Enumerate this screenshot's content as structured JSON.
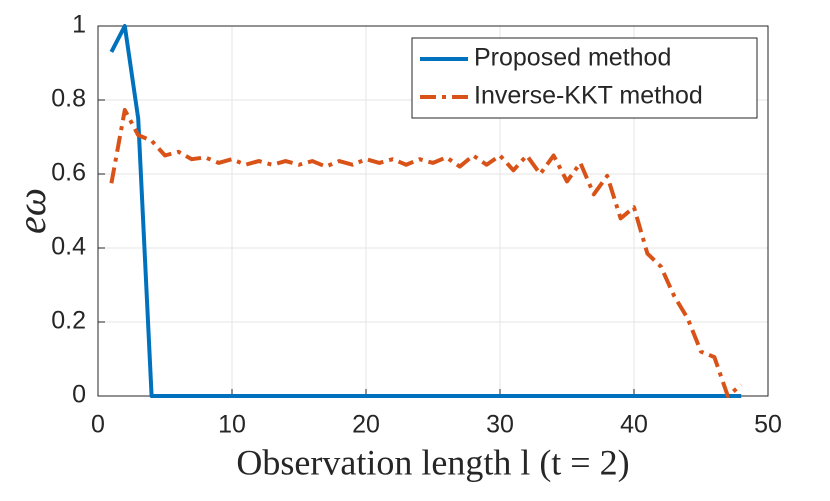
{
  "chart_data": {
    "type": "line",
    "xlabel": "Observation length l (t = 2)",
    "ylabel": "eω",
    "x": [
      1,
      2,
      3,
      4,
      5,
      6,
      7,
      8,
      9,
      10,
      11,
      12,
      13,
      14,
      15,
      16,
      17,
      18,
      19,
      20,
      21,
      22,
      23,
      24,
      25,
      26,
      27,
      28,
      29,
      30,
      31,
      32,
      33,
      34,
      35,
      36,
      37,
      38,
      39,
      40,
      41,
      42,
      43,
      44,
      45,
      46,
      47,
      48
    ],
    "series": [
      {
        "name": "Proposed method",
        "color": "#0072bd",
        "dash": "solid",
        "values": [
          0.93,
          1,
          0.75,
          0,
          0,
          0,
          0,
          0,
          0,
          0,
          0,
          0,
          0,
          0,
          0,
          0,
          0,
          0,
          0,
          0,
          0,
          0,
          0,
          0,
          0,
          0,
          0,
          0,
          0,
          0,
          0,
          0,
          0,
          0,
          0,
          0,
          0,
          0,
          0,
          0,
          0,
          0,
          0,
          0,
          0,
          0,
          0,
          0
        ]
      },
      {
        "name": "Inverse-KKT method",
        "color": "#d95319",
        "dash": "dashdot",
        "values": [
          0.575,
          0.773,
          0.705,
          0.69,
          0.65,
          0.66,
          0.64,
          0.645,
          0.63,
          0.64,
          0.625,
          0.635,
          0.625,
          0.635,
          0.625,
          0.635,
          0.62,
          0.635,
          0.625,
          0.64,
          0.63,
          0.64,
          0.625,
          0.64,
          0.63,
          0.645,
          0.62,
          0.65,
          0.625,
          0.65,
          0.61,
          0.65,
          0.6,
          0.65,
          0.58,
          0.63,
          0.545,
          0.595,
          0.48,
          0.51,
          0.385,
          0.35,
          0.27,
          0.21,
          0.12,
          0.105,
          0,
          0.03
        ]
      }
    ],
    "xlim": [
      0,
      50
    ],
    "xticks": [
      0,
      10,
      20,
      30,
      40,
      50
    ],
    "ylim": [
      0,
      1
    ],
    "yticks": [
      0,
      0.2,
      0.4,
      0.6,
      0.8,
      1
    ],
    "grid": true,
    "legend": "northeast"
  }
}
